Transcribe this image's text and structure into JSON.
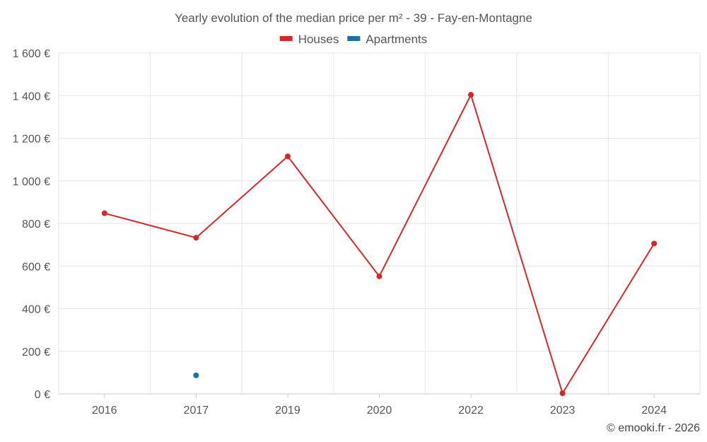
{
  "chart_data": {
    "type": "line",
    "title": "Yearly evolution of the median price per m² - 39 - Fay-en-Montagne",
    "categories": [
      "2016",
      "2017",
      "2019",
      "2020",
      "2022",
      "2023",
      "2024"
    ],
    "series": [
      {
        "name": "Houses",
        "color": "#d62728",
        "values": [
          848,
          733,
          1115,
          552,
          1404,
          3,
          706
        ]
      },
      {
        "name": "Apartments",
        "color": "#1f6fa8",
        "values": [
          null,
          87,
          null,
          null,
          null,
          null,
          null
        ]
      }
    ],
    "y_ticks": [
      0,
      200,
      400,
      600,
      800,
      1000,
      1200,
      1400,
      1600
    ],
    "y_tick_labels": [
      "0 €",
      "200 €",
      "400 €",
      "600 €",
      "800 €",
      "1 000 €",
      "1 200 €",
      "1 400 €",
      "1 600 €"
    ],
    "ylim": [
      0,
      1600
    ],
    "xlabel": "",
    "ylabel": "",
    "grid": true,
    "legend_position": "top-center"
  },
  "credit": "© emooki.fr - 2026"
}
